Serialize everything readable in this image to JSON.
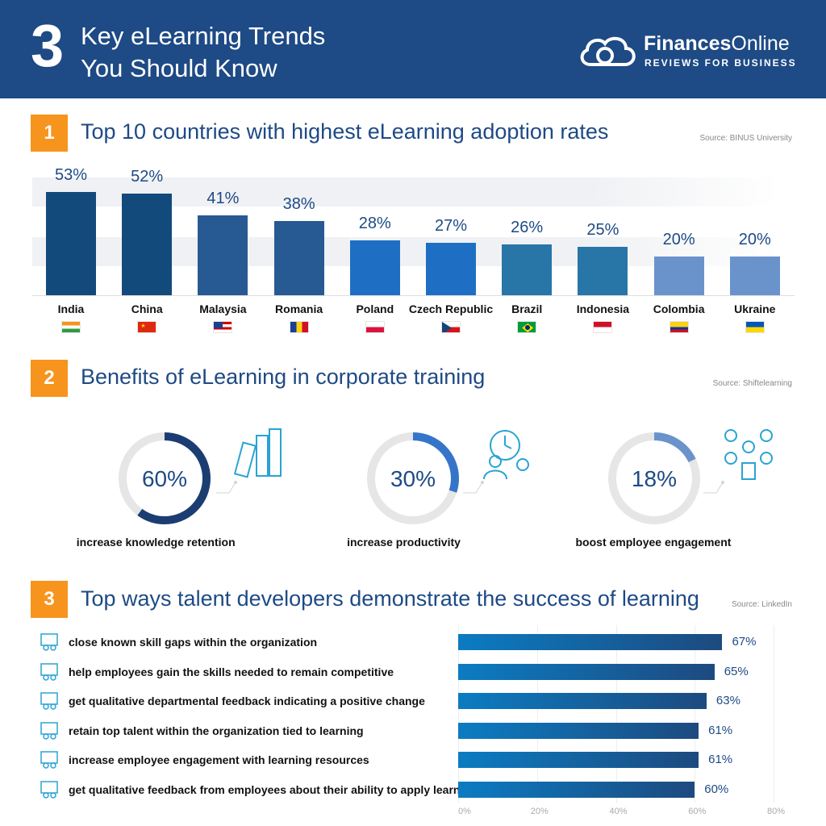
{
  "header": {
    "number": "3",
    "title_line1": "Key eLearning Trends",
    "title_line2": "You Should Know",
    "brand_bold": "Finances",
    "brand_rest": "Online",
    "brand_sub": "REVIEWS FOR BUSINESS"
  },
  "section1": {
    "number": "1",
    "title": "Top 10 countries with highest eLearning adoption rates",
    "source": "Source: BINUS University"
  },
  "section2": {
    "number": "2",
    "title": "Benefits of eLearning in corporate training",
    "source": "Source: Shiftelearning"
  },
  "section3": {
    "number": "3",
    "title": "Top ways talent developers demonstrate the success of learning",
    "source": "Source: LinkedIn"
  },
  "chart_data": [
    {
      "type": "bar",
      "title": "Top 10 countries with highest eLearning adoption rates",
      "categories": [
        "India",
        "China",
        "Malaysia",
        "Romania",
        "Poland",
        "Czech Republic",
        "Brazil",
        "Indonesia",
        "Colombia",
        "Ukraine"
      ],
      "values": [
        53,
        52,
        41,
        38,
        28,
        27,
        26,
        25,
        20,
        20
      ],
      "value_labels": [
        "53%",
        "52%",
        "41%",
        "38%",
        "28%",
        "27%",
        "26%",
        "25%",
        "20%",
        "20%"
      ],
      "flags": [
        "india-flag",
        "china-flag",
        "malaysia-flag",
        "romania-flag",
        "poland-flag",
        "czech-flag",
        "brazil-flag",
        "indonesia-flag",
        "colombia-flag",
        "ukraine-flag"
      ],
      "colors": [
        "#134a7c",
        "#134a7c",
        "#275a92",
        "#275a92",
        "#1e6fc4",
        "#1e6fc4",
        "#2875a8",
        "#2875a8",
        "#6a93cc",
        "#6a93cc"
      ],
      "ylim": [
        0,
        60
      ]
    },
    {
      "type": "pie",
      "title": "Benefits of eLearning in corporate training",
      "items": [
        {
          "label": "increase knowledge retention",
          "value": 60,
          "value_label": "60%",
          "color": "#1c3d72",
          "icon": "books-icon"
        },
        {
          "label": "increase productivity",
          "value": 30,
          "value_label": "30%",
          "color": "#3575c9",
          "icon": "clock-person-icon"
        },
        {
          "label": "boost employee engagement",
          "value": 18,
          "value_label": "18%",
          "color": "#6a93cc",
          "icon": "network-icon"
        }
      ]
    },
    {
      "type": "bar",
      "orientation": "horizontal",
      "title": "Top ways talent developers demonstrate the success of learning",
      "categories": [
        "close known skill gaps within the organization",
        "help employees gain the skills needed to remain competitive",
        "get qualitative departmental feedback indicating a positive change",
        "retain top talent within the organization tied to learning",
        "increase employee engagement with learning resources",
        "get qualitative feedback from employees about their ability to apply learning"
      ],
      "values": [
        67,
        65,
        63,
        61,
        61,
        60
      ],
      "value_labels": [
        "67%",
        "65%",
        "63%",
        "61%",
        "61%",
        "60%"
      ],
      "icons": [
        "people-board-icon",
        "team-growth-icon",
        "feedback-screen-icon",
        "talent-network-icon",
        "presentation-icon",
        "group-feedback-icon"
      ],
      "xlim": [
        0,
        80
      ],
      "xticks": [
        "0%",
        "20%",
        "40%",
        "60%",
        "80%"
      ]
    }
  ]
}
